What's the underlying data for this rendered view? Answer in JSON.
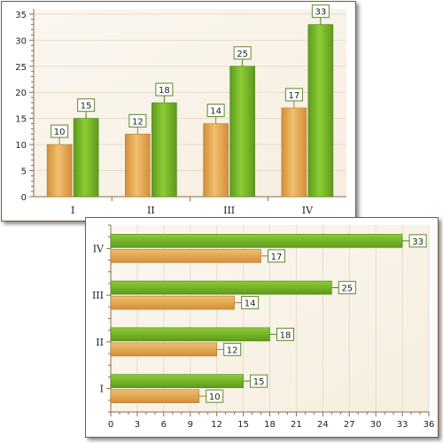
{
  "colors": {
    "series_top": "#6fb022",
    "series_bottom": "#e0a44e",
    "label_border": "#5a8a28",
    "plot_bg": "#f6eedf",
    "axis": "#8b6b4a"
  },
  "chart_data": [
    {
      "type": "bar",
      "orientation": "vertical",
      "categories": [
        "I",
        "II",
        "III",
        "IV"
      ],
      "series": [
        {
          "values": [
            10,
            12,
            14,
            17
          ]
        },
        {
          "values": [
            15,
            18,
            25,
            33
          ]
        }
      ],
      "ylim": [
        0,
        36
      ],
      "yticks": [
        0,
        5,
        10,
        15,
        20,
        25,
        30,
        35
      ],
      "grid": true,
      "data_labels": true
    },
    {
      "type": "bar",
      "orientation": "horizontal",
      "categories": [
        "I",
        "II",
        "III",
        "IV"
      ],
      "series": [
        {
          "values": [
            10,
            12,
            14,
            17
          ]
        },
        {
          "values": [
            15,
            18,
            25,
            33
          ]
        }
      ],
      "xlim": [
        0,
        36
      ],
      "xticks": [
        0,
        3,
        6,
        9,
        12,
        15,
        18,
        21,
        24,
        27,
        30,
        33,
        36
      ],
      "grid": true,
      "data_labels": true
    }
  ]
}
